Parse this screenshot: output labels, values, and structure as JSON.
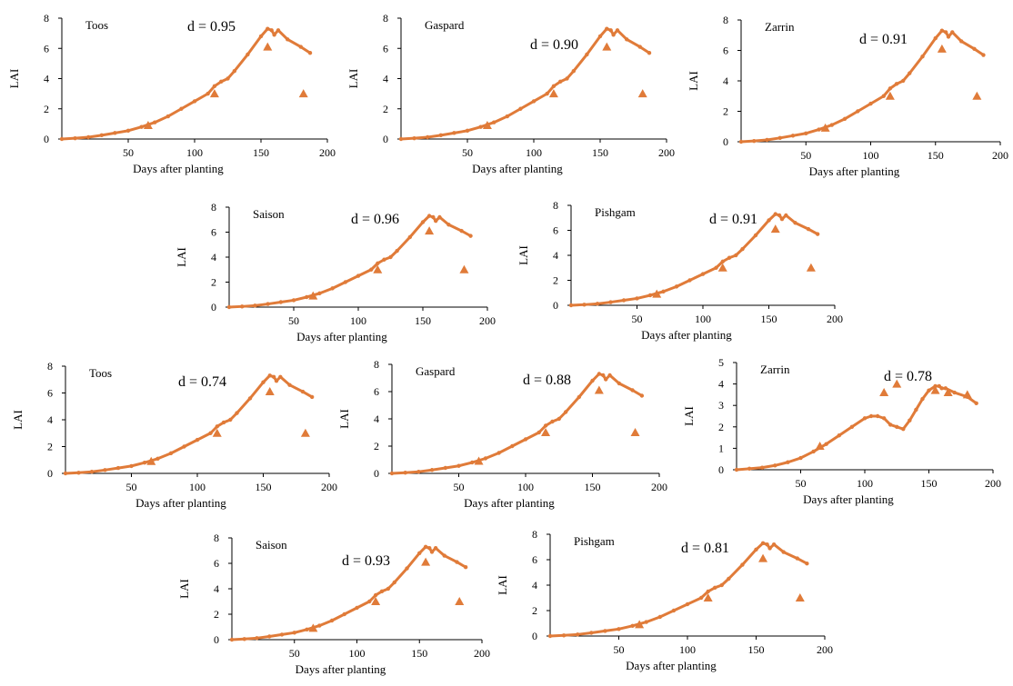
{
  "colors": {
    "simulated": "#E07B39",
    "observed": "#E07B39",
    "axis": "#000000"
  },
  "chart_data": [
    {
      "type": "line",
      "cultivar": "Toos",
      "d_label": "d = 0.95",
      "xlabel": "Days after planting",
      "ylabel": "LAI",
      "xlim": [
        0,
        200
      ],
      "ylim": [
        0,
        8
      ],
      "xticks": [
        50,
        100,
        150,
        200
      ],
      "yticks": [
        0,
        2,
        4,
        6,
        8
      ],
      "series": [
        {
          "role": "simulated",
          "x": [
            0,
            10,
            20,
            30,
            40,
            50,
            60,
            70,
            80,
            90,
            100,
            110,
            115,
            120,
            125,
            130,
            140,
            150,
            155,
            158,
            160,
            163,
            170,
            180,
            187
          ],
          "y": [
            0,
            0.05,
            0.12,
            0.25,
            0.4,
            0.55,
            0.8,
            1.1,
            1.5,
            2.0,
            2.5,
            3.0,
            3.5,
            3.8,
            4.0,
            4.5,
            5.6,
            6.8,
            7.3,
            7.2,
            6.9,
            7.2,
            6.6,
            6.1,
            5.7
          ]
        },
        {
          "role": "observed",
          "x": [
            65,
            115,
            155,
            182
          ],
          "y": [
            0.9,
            3.0,
            6.1,
            3.0
          ]
        }
      ]
    },
    {
      "type": "line",
      "cultivar": "Gaspard",
      "d_label": "d = 0.90",
      "xlabel": "Days after planting",
      "ylabel": "LAI",
      "xlim": [
        0,
        200
      ],
      "ylim": [
        0,
        8
      ],
      "xticks": [
        50,
        100,
        150,
        200
      ],
      "yticks": [
        0,
        2,
        4,
        6,
        8
      ],
      "series": [
        {
          "role": "simulated",
          "x": [
            0,
            10,
            20,
            30,
            40,
            50,
            60,
            70,
            80,
            90,
            100,
            110,
            115,
            120,
            125,
            130,
            140,
            150,
            155,
            158,
            160,
            163,
            170,
            180,
            187
          ],
          "y": [
            0,
            0.05,
            0.12,
            0.25,
            0.4,
            0.55,
            0.8,
            1.1,
            1.5,
            2.0,
            2.5,
            3.0,
            3.5,
            3.8,
            4.0,
            4.5,
            5.6,
            6.8,
            7.3,
            7.2,
            6.9,
            7.2,
            6.6,
            6.1,
            5.7
          ]
        },
        {
          "role": "observed",
          "x": [
            65,
            115,
            155,
            182
          ],
          "y": [
            0.9,
            3.0,
            6.1,
            3.0
          ]
        }
      ]
    },
    {
      "type": "line",
      "cultivar": "Zarrin",
      "d_label": "d = 0.91",
      "xlabel": "Days after planting",
      "ylabel": "LAI",
      "xlim": [
        0,
        200
      ],
      "ylim": [
        0,
        8
      ],
      "xticks": [
        50,
        100,
        150,
        200
      ],
      "yticks": [
        0,
        2,
        4,
        6,
        8
      ],
      "series": [
        {
          "role": "simulated",
          "x": [
            0,
            10,
            20,
            30,
            40,
            50,
            60,
            70,
            80,
            90,
            100,
            110,
            115,
            120,
            125,
            130,
            140,
            150,
            155,
            158,
            160,
            163,
            170,
            180,
            187
          ],
          "y": [
            0,
            0.05,
            0.12,
            0.25,
            0.4,
            0.55,
            0.8,
            1.1,
            1.5,
            2.0,
            2.5,
            3.0,
            3.5,
            3.8,
            4.0,
            4.5,
            5.6,
            6.8,
            7.3,
            7.2,
            6.9,
            7.2,
            6.6,
            6.1,
            5.7
          ]
        },
        {
          "role": "observed",
          "x": [
            65,
            115,
            155,
            182
          ],
          "y": [
            0.9,
            3.0,
            6.1,
            3.0
          ]
        }
      ]
    },
    {
      "type": "line",
      "cultivar": "Saison",
      "d_label": "d = 0.96",
      "xlabel": "Days after planting",
      "ylabel": "LAI",
      "xlim": [
        0,
        200
      ],
      "ylim": [
        0,
        8
      ],
      "xticks": [
        50,
        100,
        150,
        200
      ],
      "yticks": [
        0,
        2,
        4,
        6,
        8
      ],
      "series": [
        {
          "role": "simulated",
          "x": [
            0,
            10,
            20,
            30,
            40,
            50,
            60,
            70,
            80,
            90,
            100,
            110,
            115,
            120,
            125,
            130,
            140,
            150,
            155,
            158,
            160,
            163,
            170,
            180,
            187
          ],
          "y": [
            0,
            0.05,
            0.12,
            0.25,
            0.4,
            0.55,
            0.8,
            1.1,
            1.5,
            2.0,
            2.5,
            3.0,
            3.5,
            3.8,
            4.0,
            4.5,
            5.6,
            6.8,
            7.3,
            7.2,
            6.9,
            7.2,
            6.6,
            6.1,
            5.7
          ]
        },
        {
          "role": "observed",
          "x": [
            65,
            115,
            155,
            182
          ],
          "y": [
            0.9,
            3.0,
            6.1,
            3.0
          ]
        }
      ]
    },
    {
      "type": "line",
      "cultivar": "Pishgam",
      "d_label": "d = 0.91",
      "xlabel": "Days after planting",
      "ylabel": "LAI",
      "xlim": [
        0,
        200
      ],
      "ylim": [
        0,
        8
      ],
      "xticks": [
        50,
        100,
        150,
        200
      ],
      "yticks": [
        0,
        2,
        4,
        6,
        8
      ],
      "series": [
        {
          "role": "simulated",
          "x": [
            0,
            10,
            20,
            30,
            40,
            50,
            60,
            70,
            80,
            90,
            100,
            110,
            115,
            120,
            125,
            130,
            140,
            150,
            155,
            158,
            160,
            163,
            170,
            180,
            187
          ],
          "y": [
            0,
            0.05,
            0.12,
            0.25,
            0.4,
            0.55,
            0.8,
            1.1,
            1.5,
            2.0,
            2.5,
            3.0,
            3.5,
            3.8,
            4.0,
            4.5,
            5.6,
            6.8,
            7.3,
            7.2,
            6.9,
            7.2,
            6.6,
            6.1,
            5.7
          ]
        },
        {
          "role": "observed",
          "x": [
            65,
            115,
            155,
            182
          ],
          "y": [
            0.9,
            3.0,
            6.1,
            3.0
          ]
        }
      ]
    },
    {
      "type": "line",
      "cultivar": "Toos",
      "d_label": "d = 0.74",
      "xlabel": "Days after planting",
      "ylabel": "LAI",
      "xlim": [
        0,
        200
      ],
      "ylim": [
        0,
        8
      ],
      "xticks": [
        50,
        100,
        150,
        200
      ],
      "yticks": [
        0,
        2,
        4,
        6,
        8
      ],
      "series": [
        {
          "role": "simulated",
          "x": [
            0,
            10,
            20,
            30,
            40,
            50,
            60,
            70,
            80,
            90,
            100,
            110,
            115,
            120,
            125,
            130,
            140,
            150,
            155,
            158,
            160,
            163,
            170,
            180,
            187
          ],
          "y": [
            0,
            0.05,
            0.12,
            0.25,
            0.4,
            0.55,
            0.8,
            1.1,
            1.5,
            2.0,
            2.5,
            3.0,
            3.5,
            3.8,
            4.0,
            4.5,
            5.6,
            6.8,
            7.3,
            7.2,
            6.9,
            7.2,
            6.6,
            6.1,
            5.7
          ]
        },
        {
          "role": "observed",
          "x": [
            65,
            115,
            155,
            182
          ],
          "y": [
            0.9,
            3.0,
            6.1,
            3.0
          ]
        }
      ]
    },
    {
      "type": "line",
      "cultivar": "Gaspard",
      "d_label": "d = 0.88",
      "xlabel": "Days after planting",
      "ylabel": "LAI",
      "xlim": [
        0,
        200
      ],
      "ylim": [
        0,
        8
      ],
      "xticks": [
        50,
        100,
        150,
        200
      ],
      "yticks": [
        0,
        2,
        4,
        6,
        8
      ],
      "series": [
        {
          "role": "simulated",
          "x": [
            0,
            10,
            20,
            30,
            40,
            50,
            60,
            70,
            80,
            90,
            100,
            110,
            115,
            120,
            125,
            130,
            140,
            150,
            155,
            158,
            160,
            163,
            170,
            180,
            187
          ],
          "y": [
            0,
            0.05,
            0.12,
            0.25,
            0.4,
            0.55,
            0.8,
            1.1,
            1.5,
            2.0,
            2.5,
            3.0,
            3.5,
            3.8,
            4.0,
            4.5,
            5.6,
            6.8,
            7.3,
            7.2,
            6.9,
            7.2,
            6.6,
            6.1,
            5.7
          ]
        },
        {
          "role": "observed",
          "x": [
            65,
            115,
            155,
            182
          ],
          "y": [
            0.9,
            3.0,
            6.1,
            3.0
          ]
        }
      ]
    },
    {
      "type": "line",
      "cultivar": "Zarrin",
      "d_label": "d = 0.78",
      "xlabel": "Days after planting",
      "ylabel": "LAI",
      "xlim": [
        0,
        200
      ],
      "ylim": [
        0,
        5
      ],
      "xticks": [
        50,
        100,
        150,
        200
      ],
      "yticks": [
        0,
        1,
        2,
        3,
        4,
        5
      ],
      "series": [
        {
          "role": "simulated",
          "x": [
            0,
            10,
            20,
            30,
            40,
            50,
            60,
            70,
            80,
            90,
            100,
            105,
            110,
            115,
            120,
            125,
            130,
            135,
            140,
            145,
            150,
            155,
            158,
            160,
            163,
            170,
            180,
            187
          ],
          "y": [
            0,
            0.05,
            0.1,
            0.2,
            0.35,
            0.55,
            0.85,
            1.2,
            1.6,
            2.0,
            2.4,
            2.5,
            2.5,
            2.4,
            2.1,
            2.0,
            1.9,
            2.3,
            2.8,
            3.3,
            3.7,
            3.9,
            3.9,
            3.8,
            3.8,
            3.6,
            3.4,
            3.1
          ]
        },
        {
          "role": "observed",
          "x": [
            65,
            115,
            125,
            155,
            165,
            180
          ],
          "y": [
            1.1,
            3.6,
            4.0,
            3.7,
            3.6,
            3.5
          ]
        }
      ]
    },
    {
      "type": "line",
      "cultivar": "Saison",
      "d_label": "d = 0.93",
      "xlabel": "Days after planting",
      "ylabel": "LAI",
      "xlim": [
        0,
        200
      ],
      "ylim": [
        0,
        8
      ],
      "xticks": [
        50,
        100,
        150,
        200
      ],
      "yticks": [
        0,
        2,
        4,
        6,
        8
      ],
      "series": [
        {
          "role": "simulated",
          "x": [
            0,
            10,
            20,
            30,
            40,
            50,
            60,
            70,
            80,
            90,
            100,
            110,
            115,
            120,
            125,
            130,
            140,
            150,
            155,
            158,
            160,
            163,
            170,
            180,
            187
          ],
          "y": [
            0,
            0.05,
            0.12,
            0.25,
            0.4,
            0.55,
            0.8,
            1.1,
            1.5,
            2.0,
            2.5,
            3.0,
            3.5,
            3.8,
            4.0,
            4.5,
            5.6,
            6.8,
            7.3,
            7.2,
            6.9,
            7.2,
            6.6,
            6.1,
            5.7
          ]
        },
        {
          "role": "observed",
          "x": [
            65,
            115,
            155,
            182
          ],
          "y": [
            0.9,
            3.0,
            6.1,
            3.0
          ]
        }
      ]
    },
    {
      "type": "line",
      "cultivar": "Pishgam",
      "d_label": "d = 0.81",
      "xlabel": "Days after planting",
      "ylabel": "LAI",
      "xlim": [
        0,
        200
      ],
      "ylim": [
        0,
        8
      ],
      "xticks": [
        50,
        100,
        150,
        200
      ],
      "yticks": [
        0,
        2,
        4,
        6,
        8
      ],
      "series": [
        {
          "role": "simulated",
          "x": [
            0,
            10,
            20,
            30,
            40,
            50,
            60,
            70,
            80,
            90,
            100,
            110,
            115,
            120,
            125,
            130,
            140,
            150,
            155,
            158,
            160,
            163,
            170,
            180,
            187
          ],
          "y": [
            0,
            0.05,
            0.12,
            0.25,
            0.4,
            0.55,
            0.8,
            1.1,
            1.5,
            2.0,
            2.5,
            3.0,
            3.5,
            3.8,
            4.0,
            4.5,
            5.6,
            6.8,
            7.3,
            7.2,
            6.9,
            7.2,
            6.6,
            6.1,
            5.7
          ]
        },
        {
          "role": "observed",
          "x": [
            65,
            115,
            155,
            182
          ],
          "y": [
            0.9,
            3.0,
            6.1,
            3.0
          ]
        }
      ]
    }
  ]
}
